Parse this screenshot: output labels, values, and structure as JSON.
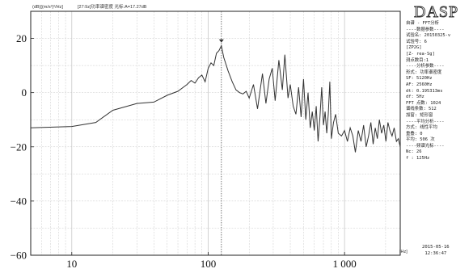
{
  "header": {
    "left": "(dB)[(m/s²)²/Hz]",
    "middle": "[27:9z]功率谱密度 光标:A=17.27dB",
    "unit_right": "[Hz]"
  },
  "brand": "DASP",
  "info_lines": [
    "自谱 - FFT分析",
    "----数据参数----",
    "试验名: 20150325-v",
    "试验号: 6",
    "[ZP2G]",
    "[Z- rea-Sg]",
    "测点数目:1",
    "----分析参数----",
    "形式: 功率谱密度",
    "SF: 5120Hz",
    "AF: 2560Hz",
    "dt: 0.195313ms",
    "df: 5Hz",
    "FFT 点数: 1024",
    "谱线条数: 512",
    "加窗: 矩形窗",
    "----平均分析----",
    "方式: 线性平均",
    "重叠: 0",
    "平均: 506 次",
    "----频谱光标----",
    "Nc: 26",
    "f : 125Hz"
  ],
  "footer": {
    "date": "2015-05-16",
    "time": "12:36:47"
  },
  "colors": {
    "line": "#333333",
    "grid": "#c8c8c8",
    "cursor": "#555555",
    "axis": "#222222"
  },
  "chart_data": {
    "type": "line",
    "title": "",
    "xlabel": "Hz",
    "ylabel": "dB",
    "xscale": "log",
    "xlim": [
      5,
      2560
    ],
    "ylim": [
      -60,
      30
    ],
    "grid": true,
    "x_ticks": [
      10,
      100,
      1000
    ],
    "x_tick_labels": [
      "10",
      "100",
      "1 000"
    ],
    "y_ticks": [
      -60,
      -40,
      -20,
      0,
      20
    ],
    "y_tick_labels": [
      "−60",
      "−40",
      "−20",
      "0",
      "20"
    ],
    "cursor": {
      "x": 125,
      "y": 17.27
    },
    "series": [
      {
        "x": [
          5,
          10,
          15,
          20,
          30,
          40,
          50,
          60,
          70,
          75,
          80,
          85,
          90,
          95,
          100,
          105,
          110,
          115,
          120,
          125,
          130,
          140,
          150,
          160,
          170,
          180,
          190,
          200,
          215,
          230,
          250,
          265,
          280,
          295,
          310,
          330,
          350,
          365,
          385,
          400,
          420,
          440,
          460,
          480,
          500,
          520,
          540,
          560,
          580,
          600,
          620,
          640,
          660,
          680,
          700,
          720,
          740,
          760,
          780,
          800,
          830,
          860,
          900,
          950,
          1000,
          1050,
          1100,
          1150,
          1200,
          1260,
          1320,
          1380,
          1440,
          1500,
          1560,
          1620,
          1680,
          1740,
          1800,
          1870,
          1940,
          2010,
          2080,
          2150,
          2230,
          2310,
          2400,
          2480,
          2560
        ],
        "y": [
          -13,
          -12.5,
          -11,
          -6.5,
          -4,
          -3.5,
          -1,
          0.5,
          3,
          4.5,
          3.5,
          5.5,
          6.5,
          4,
          9,
          11,
          10,
          14.5,
          15.5,
          17.3,
          13,
          8,
          4,
          1,
          0,
          -0.5,
          0.5,
          -2,
          3,
          -6,
          7,
          -4,
          5,
          9,
          -3,
          12,
          1,
          14,
          -2,
          3,
          -5,
          -8,
          2,
          -9,
          5,
          -10,
          0,
          -13,
          -7,
          -14,
          -5,
          -18,
          -9,
          2,
          -12,
          -7,
          -15,
          -8,
          4,
          -17,
          -11,
          -8,
          -15,
          -16,
          -14,
          -18,
          -13,
          -16,
          -22,
          -14,
          -18,
          -12,
          -20,
          -16,
          -11,
          -19,
          -13,
          -17,
          -10,
          -15,
          -12,
          -18,
          -11,
          -14,
          -16,
          -13,
          -18,
          -17,
          -20
        ]
      }
    ]
  }
}
